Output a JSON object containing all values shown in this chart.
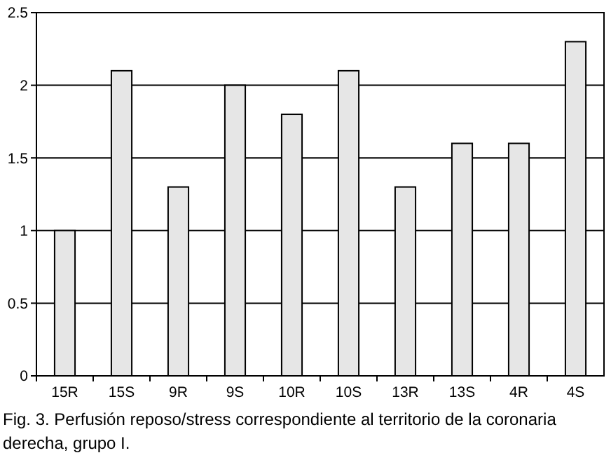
{
  "chart_data": {
    "type": "bar",
    "categories": [
      "15R",
      "15S",
      "9R",
      "9S",
      "10R",
      "10S",
      "13R",
      "13S",
      "4R",
      "4S"
    ],
    "values": [
      1.0,
      2.1,
      1.3,
      2.0,
      1.8,
      2.1,
      1.3,
      1.6,
      1.6,
      2.3
    ],
    "color": "#e6e6e6",
    "ylim": [
      0,
      2.5
    ],
    "yticks": [
      0,
      0.5,
      1,
      1.5,
      2,
      2.5
    ],
    "grid": "y",
    "annotations": [
      "Fig. 3. Perfusión reposo/stress correspondiente al territorio de la coronaria derecha, grupo I."
    ]
  }
}
